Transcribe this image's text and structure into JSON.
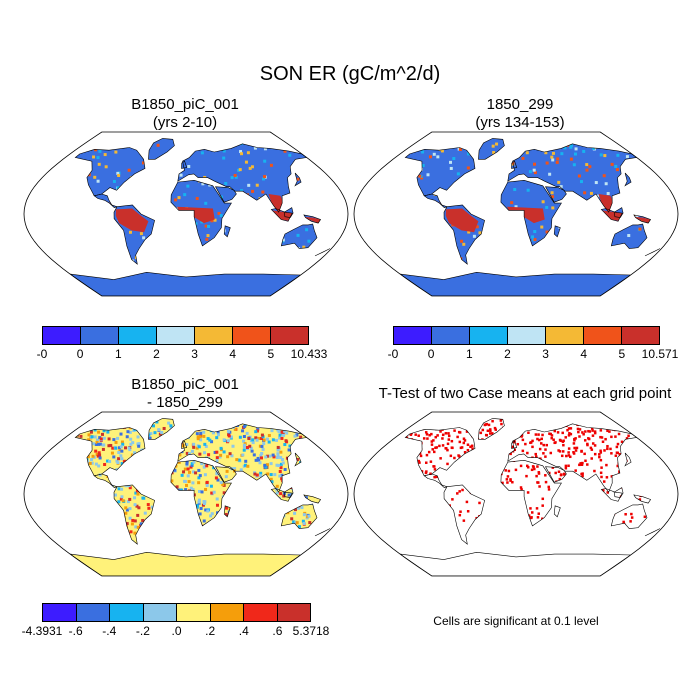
{
  "main_title": "SON ER (gC/m^2/d)",
  "panels": {
    "top_left": {
      "title_line1": "B1850_piC_001",
      "title_line2": "(yrs 2-10)"
    },
    "top_right": {
      "title_line1": "1850_299",
      "title_line2": "(yrs 134-153)"
    },
    "bottom_left": {
      "title_line1": "B1850_piC_001",
      "title_line2": "- 1850_299"
    },
    "bottom_right": {
      "title": "T-Test of two Case means at each grid point",
      "note": "Cells are significant at 0.1 level"
    }
  },
  "colorbars": {
    "top_left": {
      "colors": [
        "#3d1cff",
        "#3a6fe0",
        "#17b3f0",
        "#bfe4f4",
        "#f4b935",
        "#f0531a",
        "#c9302b"
      ],
      "labels": [
        "-0",
        "0",
        "1",
        "2",
        "3",
        "4",
        "5",
        "10.433"
      ]
    },
    "top_right": {
      "colors": [
        "#3d1cff",
        "#3a6fe0",
        "#17b3f0",
        "#bfe4f4",
        "#f4b935",
        "#f0531a",
        "#c9302b"
      ],
      "labels": [
        "-0",
        "0",
        "1",
        "2",
        "3",
        "4",
        "5",
        "10.571"
      ]
    },
    "bottom_left": {
      "colors": [
        "#3d1cff",
        "#3a6fe0",
        "#17b3f0",
        "#8cc8ea",
        "#fff27a",
        "#f59e0b",
        "#f0281a",
        "#c9302b"
      ],
      "labels": [
        "-4.3931",
        "-.6",
        "-.4",
        "-.2",
        ".0",
        ".2",
        ".4",
        ".6",
        "5.3718"
      ]
    }
  },
  "map_colors": {
    "ocean": "#ffffff",
    "coast": "#000000",
    "land_base_top": "#3a6fe0",
    "tropics_top": "#c9302b",
    "land_base_diff": "#fff27a",
    "antarctica_diff": "#fff27a",
    "signif": "#ee0000"
  }
}
